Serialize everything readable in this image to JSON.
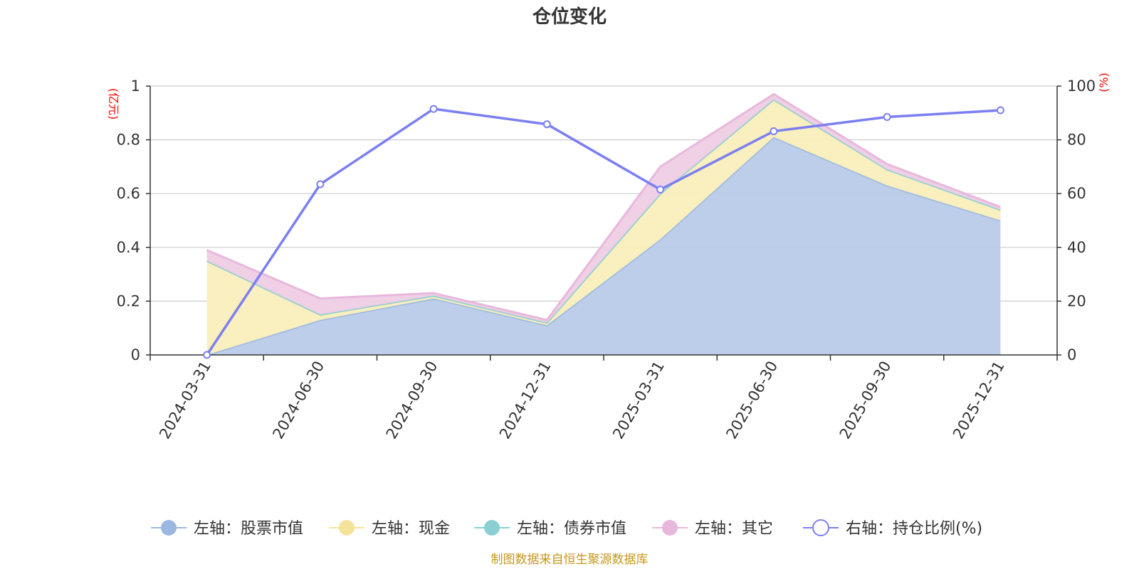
{
  "chart_data": {
    "type": "area",
    "title": "仓位变化",
    "categories": [
      "2024-03-31",
      "2024-06-30",
      "2024-09-30",
      "2024-12-31",
      "2025-03-31",
      "2025-06-30",
      "2025-09-30",
      "2025-12-31"
    ],
    "left_axis": {
      "unit": "(亿元)",
      "ylim": [
        0,
        1
      ],
      "ticks": [
        "0",
        "0.2",
        "0.4",
        "0.6",
        "0.8",
        "1"
      ]
    },
    "right_axis": {
      "unit": "(%)",
      "ylim": [
        0,
        100
      ],
      "ticks": [
        "0",
        "20",
        "40",
        "60",
        "80",
        "100"
      ]
    },
    "series": [
      {
        "name": "左轴：股票市值",
        "axis": "left",
        "kind": "stacked-area",
        "line_color": "#9bb8e0",
        "fill_color": "#b8cbe9",
        "values": [
          0.0,
          0.13,
          0.21,
          0.11,
          0.43,
          0.81,
          0.63,
          0.5
        ]
      },
      {
        "name": "左轴：现金",
        "axis": "left",
        "kind": "stacked-area",
        "line_color": "#f5e39c",
        "fill_color": "#faeebb",
        "values": [
          0.35,
          0.02,
          0.01,
          0.01,
          0.17,
          0.14,
          0.06,
          0.04
        ]
      },
      {
        "name": "左轴：债券市值",
        "axis": "left",
        "kind": "stacked-area",
        "line_color": "#8ad0d3",
        "fill_color": "#a8dfe1",
        "values": [
          0,
          0,
          0,
          0,
          0,
          0,
          0,
          0
        ]
      },
      {
        "name": "左轴：其它",
        "axis": "left",
        "kind": "stacked-area",
        "line_color": "#e8b8dc",
        "fill_color": "#eecde4",
        "values": [
          0.04,
          0.06,
          0.01,
          0.01,
          0.1,
          0.02,
          0.02,
          0.01
        ]
      },
      {
        "name": "右轴：持仓比例(%)",
        "axis": "right",
        "kind": "line",
        "line_color": "#7b7ff0",
        "values": [
          0,
          63.5,
          91.5,
          85.8,
          61.5,
          83.2,
          88.5,
          91.0
        ]
      }
    ],
    "grid": true,
    "legend_position": "bottom"
  },
  "source": "制图数据来自恒生聚源数据库"
}
